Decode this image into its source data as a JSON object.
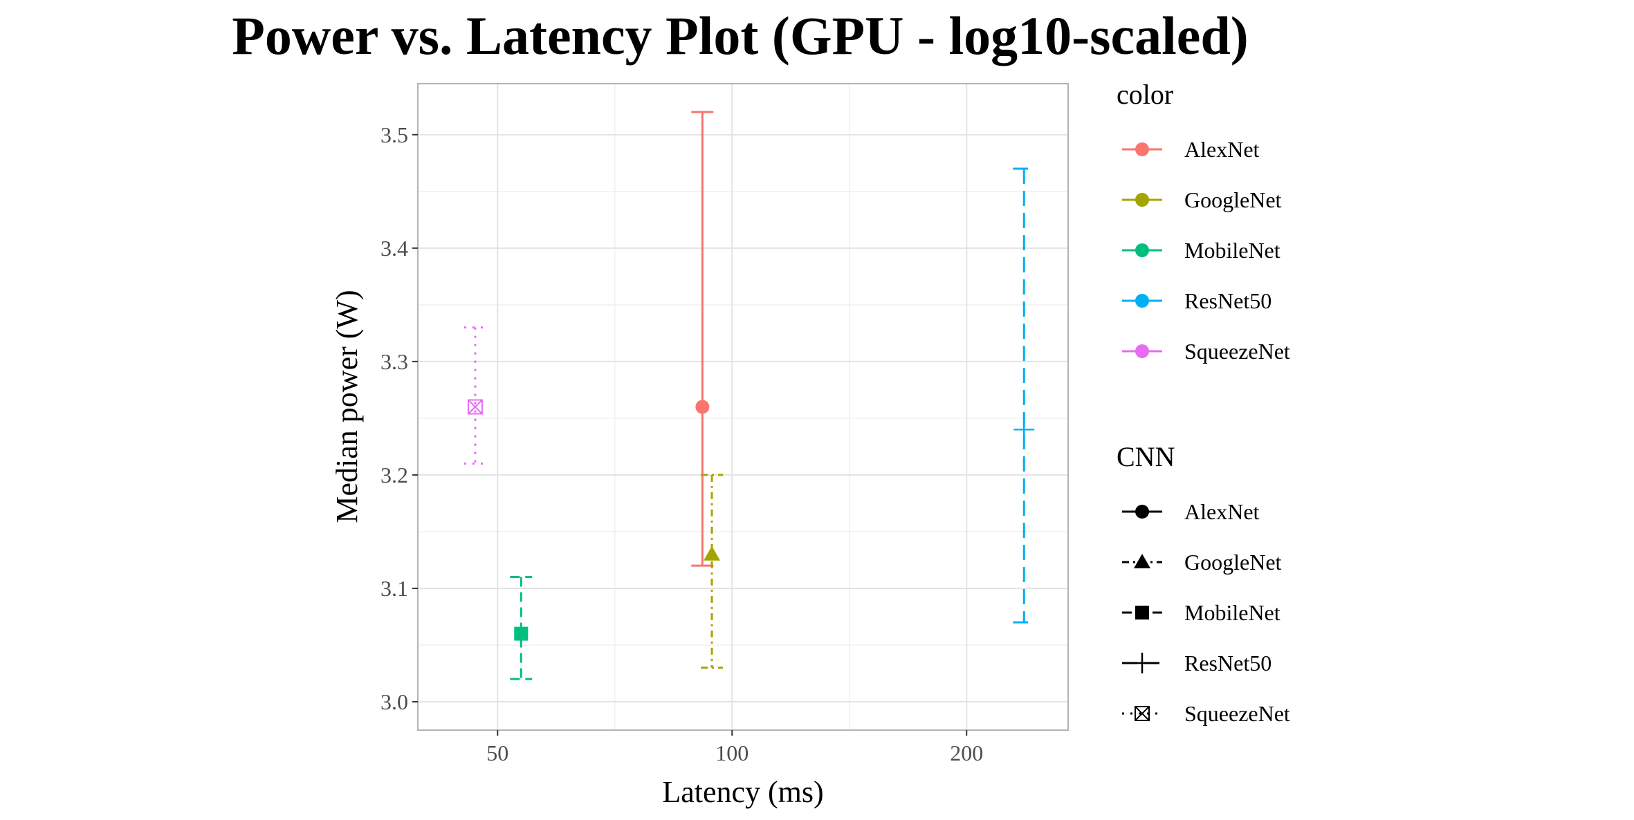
{
  "chart_data": {
    "type": "scatter",
    "title": "Power vs. Latency Plot (GPU - log10-scaled)",
    "xlabel": "Latency (ms)",
    "ylabel": "Median power (W)",
    "x_scale": "log10",
    "xlim": [
      39.5,
      270
    ],
    "ylim": [
      2.975,
      3.545
    ],
    "x_ticks": [
      50,
      100,
      200
    ],
    "x_minor_ticks": [
      70.7,
      141.4
    ],
    "y_ticks": [
      3.0,
      3.1,
      3.2,
      3.3,
      3.4,
      3.5
    ],
    "y_tick_labels": [
      "3.0",
      "3.1",
      "3.2",
      "3.3",
      "3.4",
      "3.5"
    ],
    "grid": true,
    "legend_position": "right",
    "series": [
      {
        "name": "AlexNet",
        "color": "#F8766D",
        "shape": "circle",
        "linetype": "solid",
        "x": 91.6,
        "y": 3.26,
        "ymin": 3.12,
        "ymax": 3.52
      },
      {
        "name": "GoogleNet",
        "color": "#A3A500",
        "shape": "triangle",
        "linetype": "dashed-dotted",
        "x": 94.2,
        "y": 3.13,
        "ymin": 3.03,
        "ymax": 3.2
      },
      {
        "name": "MobileNet",
        "color": "#00BF7D",
        "shape": "square",
        "linetype": "dashed",
        "x": 53.6,
        "y": 3.06,
        "ymin": 3.02,
        "ymax": 3.11
      },
      {
        "name": "ResNet50",
        "color": "#00B0F6",
        "shape": "plus",
        "linetype": "longdash",
        "x": 237,
        "y": 3.24,
        "ymin": 3.07,
        "ymax": 3.47
      },
      {
        "name": "SqueezeNet",
        "color": "#E76BF3",
        "shape": "square-cross",
        "linetype": "dotted",
        "x": 46.8,
        "y": 3.26,
        "ymin": 3.21,
        "ymax": 3.33
      }
    ]
  },
  "legend_color": {
    "title": "color",
    "items": [
      "AlexNet",
      "GoogleNet",
      "MobileNet",
      "ResNet50",
      "SqueezeNet"
    ]
  },
  "legend_cnn": {
    "title": "CNN",
    "items": [
      "AlexNet",
      "GoogleNet",
      "MobileNet",
      "ResNet50",
      "SqueezeNet"
    ]
  }
}
